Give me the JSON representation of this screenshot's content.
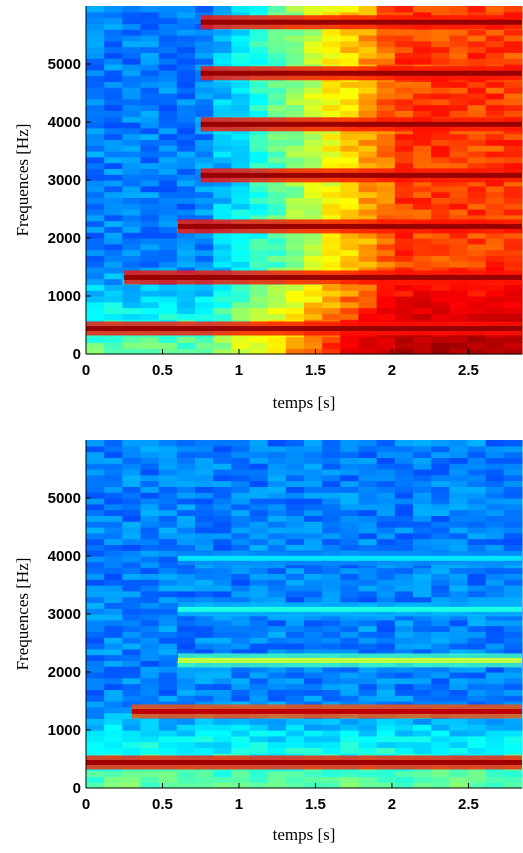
{
  "chart_data": [
    {
      "type": "heatmap",
      "title": "",
      "xlabel": "temps [s]",
      "ylabel": "Frequences [Hz]",
      "xlim": [
        0,
        2.85
      ],
      "ylim": [
        0,
        6000
      ],
      "xticks": [
        0,
        0.5,
        1,
        1.5,
        2,
        2.5
      ],
      "xtick_labels": [
        "0",
        "0.5",
        "1",
        "1.5",
        "2",
        "2.5"
      ],
      "yticks": [
        0,
        1000,
        2000,
        3000,
        4000,
        5000
      ],
      "ytick_labels": [
        "0",
        "1000",
        "2000",
        "3000",
        "4000",
        "5000"
      ],
      "colormap": [
        "#00008f",
        "#0000ff",
        "#00ffff",
        "#ffff00",
        "#ff0000",
        "#800000"
      ],
      "harmonics_hz": [
        440,
        1320,
        2200,
        3080,
        3960,
        4840,
        5720
      ],
      "harmonic_onset_s": [
        0,
        0.25,
        0.6,
        0.75,
        0.75,
        0.75,
        0.75
      ],
      "background_level_start": 0.3,
      "background_level_end": 0.75,
      "transition_time_s": 0.75
    },
    {
      "type": "heatmap",
      "title": "",
      "xlabel": "temps [s]",
      "ylabel": "Frequences [Hz]",
      "xlim": [
        0,
        2.85
      ],
      "ylim": [
        0,
        6000
      ],
      "xticks": [
        0,
        0.5,
        1,
        1.5,
        2,
        2.5
      ],
      "xtick_labels": [
        "0",
        "0.5",
        "1",
        "1.5",
        "2",
        "2.5"
      ],
      "yticks": [
        0,
        1000,
        2000,
        3000,
        4000,
        5000
      ],
      "ytick_labels": [
        "0",
        "1000",
        "2000",
        "3000",
        "4000",
        "5000"
      ],
      "colormap": [
        "#00008f",
        "#0000ff",
        "#00ffff",
        "#ffff00",
        "#ff0000",
        "#800000"
      ],
      "harmonics_hz": [
        440,
        1320,
        2200,
        3080,
        3960
      ],
      "harmonic_level": [
        0.95,
        0.9,
        0.55,
        0.42,
        0.38
      ],
      "harmonic_onset_s": [
        0,
        0.3,
        0.6,
        0.6,
        0.6
      ],
      "background_level_start": 0.3,
      "background_level_end": 0.3,
      "transition_time_s": 1.75
    }
  ]
}
